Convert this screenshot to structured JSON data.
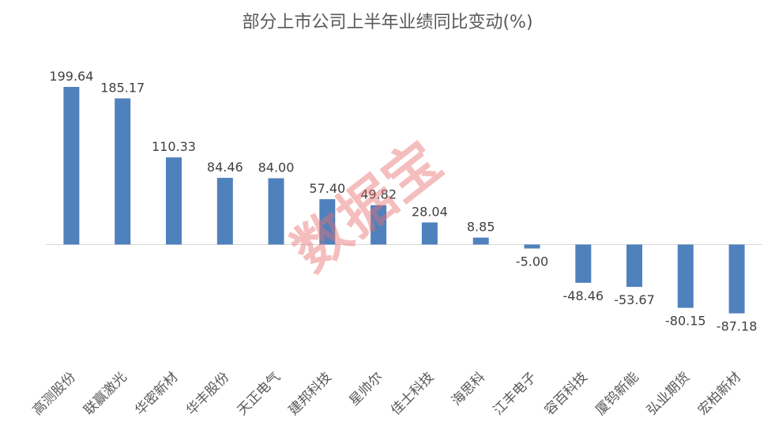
{
  "chart_data": {
    "type": "bar",
    "title": "部分上市公司上半年业绩同比变动(%)",
    "categories": [
      "高测股份",
      "联赢激光",
      "华密新材",
      "华丰股份",
      "天正电气",
      "建邦科技",
      "星帅尔",
      "佳士科技",
      "海思科",
      "江丰电子",
      "容百科技",
      "厦钨新能",
      "弘业期货",
      "宏柏新材"
    ],
    "values": [
      199.64,
      185.17,
      110.33,
      84.46,
      84.0,
      57.4,
      49.82,
      28.04,
      8.85,
      -5.0,
      -48.46,
      -53.67,
      -80.15,
      -87.18
    ],
    "data_labels": [
      "199.64",
      "185.17",
      "110.33",
      "84.46",
      "84.00",
      "57.40",
      "49.82",
      "28.04",
      "8.85",
      "-5.00",
      "-48.46",
      "-53.67",
      "-80.15",
      "-87.18"
    ],
    "xlabel": "",
    "ylabel": "",
    "y_axis_visible": false,
    "grid": false,
    "legend": "none",
    "bar_color": "#4F81BD"
  },
  "watermark": "数据宝"
}
